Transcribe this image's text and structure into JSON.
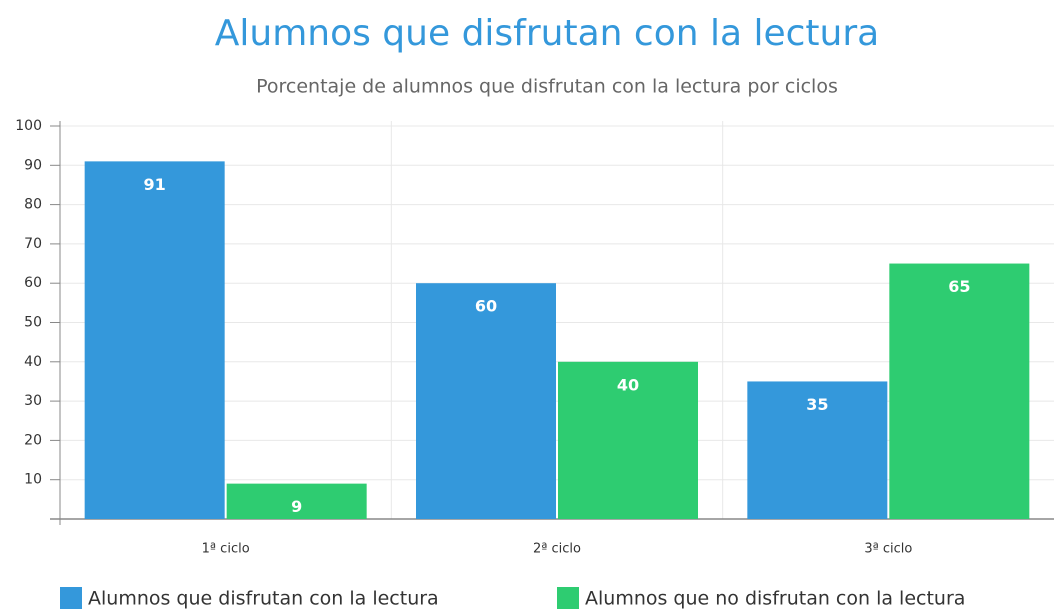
{
  "chart_data": {
    "type": "bar",
    "title": "Alumnos que disfrutan con la lectura",
    "subtitle": "Porcentaje de alumnos que disfrutan con la lectura por ciclos",
    "categories": [
      "1ª ciclo",
      "2ª ciclo",
      "3ª ciclo"
    ],
    "series": [
      {
        "name": "Alumnos que disfrutan con la lectura",
        "color": "#3498db",
        "values": [
          91,
          60,
          35
        ]
      },
      {
        "name": "Alumnos que no disfrutan con la lectura",
        "color": "#2ecc71",
        "values": [
          9,
          40,
          65
        ]
      }
    ],
    "ylim": [
      0,
      100
    ],
    "yticks": [
      10,
      20,
      30,
      40,
      50,
      60,
      70,
      80,
      90,
      100
    ],
    "grid": true,
    "legend": "bottom"
  }
}
